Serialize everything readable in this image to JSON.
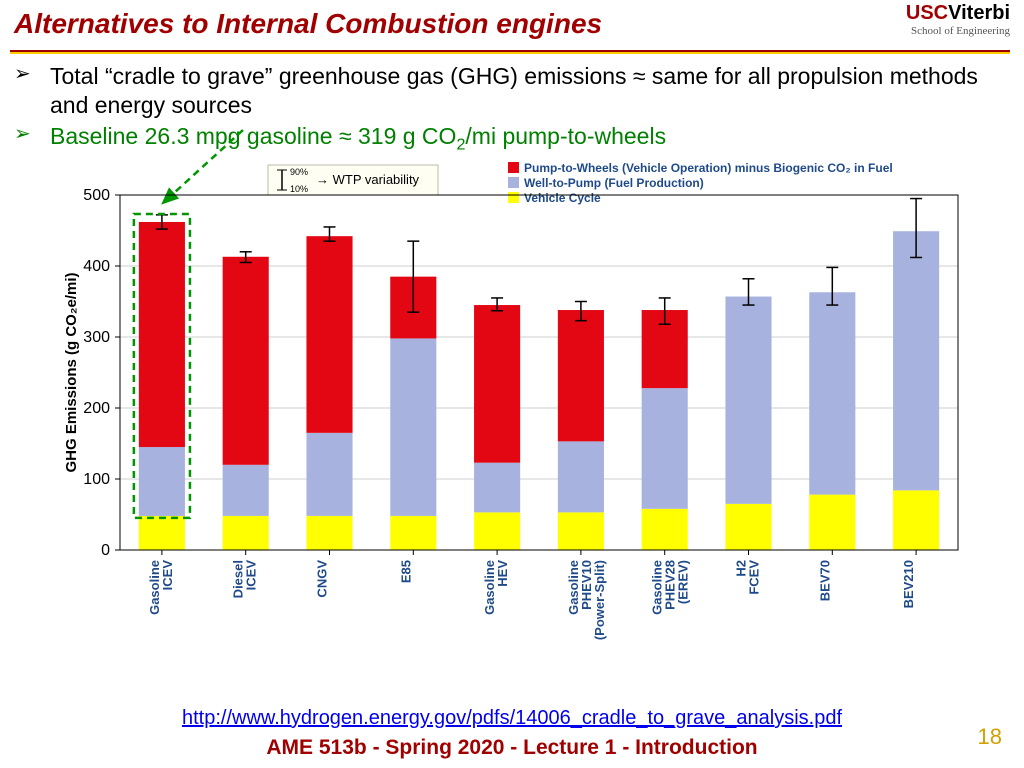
{
  "header": {
    "title": "Alternatives to Internal Combustion engines",
    "logo_top": "USC",
    "logo_v": "Viterbi",
    "logo_sub": "School of Engineering"
  },
  "bullets": {
    "b1": "Total “cradle to grave” greenhouse gas (GHG) emissions ≈ same for all propulsion methods and energy sources",
    "b2_pre": "Baseline 26.3 mpg gasoline ≈ 319 g CO",
    "b2_sub": "2",
    "b2_post": "/mi pump-to-wheels"
  },
  "legend": {
    "wtp": "WTP variability",
    "wtp_hi": "90%",
    "wtp_lo": "10%",
    "items": [
      {
        "color": "#e30613",
        "label": "Pump-to-Wheels (Vehicle Operation) minus Biogenic CO₂ in Fuel"
      },
      {
        "color": "#a8b2de",
        "label": "Well-to-Pump (Fuel Production)"
      },
      {
        "color": "#ffff00",
        "label": "Vehicle Cycle"
      }
    ]
  },
  "chart": {
    "type": "stacked-bar",
    "ylabel": "GHG Emissions (g CO₂e/mi)",
    "ylim": [
      0,
      500
    ],
    "ytick_step": 100,
    "grid_color": "#cfcfcf",
    "background": "#ffffff",
    "bar_width": 0.55,
    "colors": {
      "vehicle": "#ffff00",
      "wtp": "#a8b2de",
      "ptw": "#e30613",
      "err": "#000"
    },
    "categories": [
      "Gasoline ICEV",
      "Diesel ICEV",
      "CNGV",
      "E85",
      "Gasoline HEV",
      "Gasoline PHEV10 (Power-Split)",
      "Gasoline PHEV28 (EREV)",
      "H2 FCEV",
      "BEV70",
      "BEV210"
    ],
    "series": {
      "vehicle": [
        48,
        48,
        48,
        48,
        53,
        53,
        58,
        65,
        78,
        84
      ],
      "wtp": [
        97,
        72,
        117,
        250,
        70,
        100,
        170,
        292,
        285,
        365
      ],
      "ptw": [
        317,
        293,
        277,
        87,
        222,
        185,
        110,
        0,
        0,
        0
      ]
    },
    "error": {
      "lo": [
        452,
        405,
        435,
        335,
        337,
        323,
        318,
        345,
        345,
        412
      ],
      "hi": [
        472,
        420,
        455,
        435,
        355,
        350,
        355,
        382,
        398,
        495
      ]
    },
    "highlight_index": 0,
    "highlight_color": "#009600"
  },
  "link": "http://www.hydrogen.energy.gov/pdfs/14006_cradle_to_grave_analysis.pdf",
  "footer": "AME 513b - Spring 2020 - Lecture 1 - Introduction",
  "page": "18"
}
